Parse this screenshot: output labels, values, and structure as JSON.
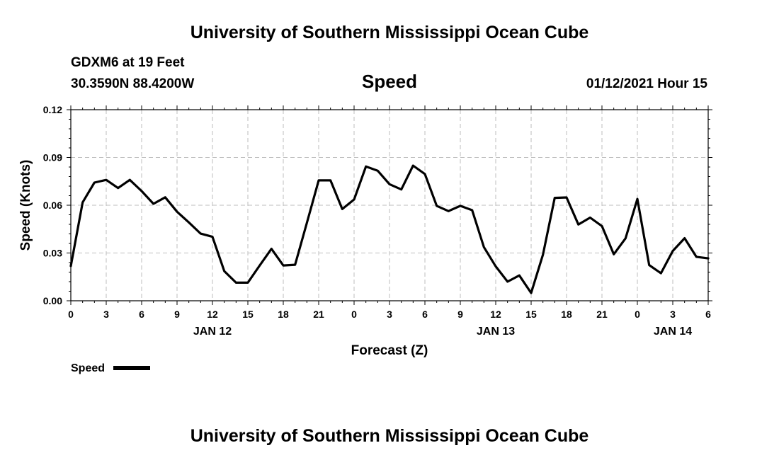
{
  "header": {
    "title": "University of Southern Mississippi Ocean Cube",
    "station": "GDXM6 at 19 Feet",
    "location": "30.3590N 88.4200W",
    "timestamp": "01/12/2021 Hour 15",
    "footer_title": "University of Southern Mississippi Ocean Cube"
  },
  "chart_data": {
    "type": "line",
    "title": "Speed",
    "xlabel": "Forecast (Z)",
    "ylabel": "Speed (Knots)",
    "ylim": [
      0,
      0.12
    ],
    "yticks": [
      "0.00",
      "0.03",
      "0.06",
      "0.09",
      "0.12"
    ],
    "xlim": [
      0,
      54
    ],
    "xtick_labels": [
      "0",
      "3",
      "6",
      "9",
      "12",
      "15",
      "18",
      "21",
      "0",
      "3",
      "6",
      "9",
      "12",
      "15",
      "18",
      "21",
      "0",
      "3",
      "6"
    ],
    "day_labels": [
      {
        "text": "JAN 12",
        "hour": 12
      },
      {
        "text": "JAN 13",
        "hour": 36
      },
      {
        "text": "JAN 14",
        "hour": 51
      }
    ],
    "grid": true,
    "legend": {
      "label": "Speed",
      "placement": "bottom-left"
    },
    "series": [
      {
        "name": "Speed",
        "color": "#000000",
        "x": [
          0,
          1,
          2,
          3,
          4,
          5,
          6,
          7,
          8,
          9,
          10,
          11,
          12,
          13,
          14,
          15,
          16,
          17,
          18,
          19,
          20,
          21,
          22,
          23,
          24,
          25,
          26,
          27,
          28,
          29,
          30,
          31,
          32,
          33,
          34,
          35,
          36,
          37,
          38,
          39,
          40,
          41,
          42,
          43,
          44,
          45,
          46,
          47,
          48,
          49,
          50,
          51,
          52,
          53,
          54
        ],
        "values": [
          0.0218,
          0.0618,
          0.0742,
          0.0759,
          0.0708,
          0.0759,
          0.0689,
          0.0609,
          0.065,
          0.0559,
          0.0492,
          0.0422,
          0.0402,
          0.0186,
          0.0114,
          0.0114,
          0.0222,
          0.0326,
          0.0222,
          0.0226,
          0.0489,
          0.0756,
          0.0756,
          0.0576,
          0.0636,
          0.0843,
          0.0817,
          0.0732,
          0.0699,
          0.0849,
          0.0796,
          0.0596,
          0.0563,
          0.0596,
          0.0569,
          0.0337,
          0.0216,
          0.012,
          0.0159,
          0.0049,
          0.029,
          0.0646,
          0.0649,
          0.0479,
          0.0522,
          0.0469,
          0.0292,
          0.0392,
          0.0639,
          0.0224,
          0.0173,
          0.0313,
          0.0393,
          0.0276,
          0.0266
        ]
      }
    ]
  }
}
